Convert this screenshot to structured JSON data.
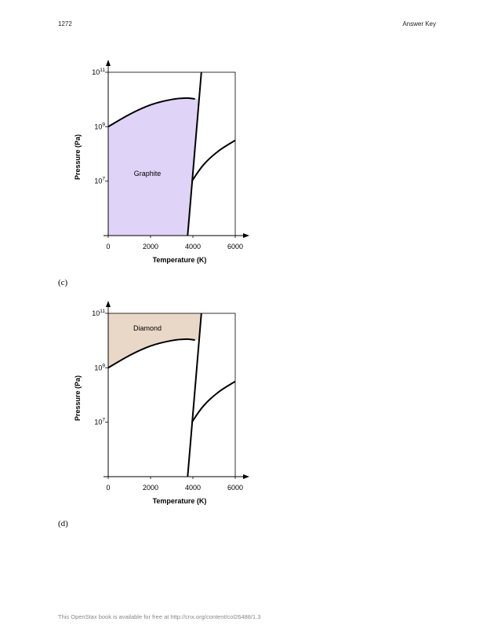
{
  "header": {
    "page_number": "1272",
    "section": "Answer Key"
  },
  "footer": {
    "text": "This OpenStax book is available for free at http://cnx.org/content/col26488/1.3"
  },
  "colors": {
    "graphite_fill": "#dfd3f7",
    "diamond_fill": "#e9d8c8",
    "line": "#000000"
  },
  "chart_data": [
    {
      "type": "area",
      "caption": "(c)",
      "region_label": "Graphite",
      "highlight": "graphite",
      "xlabel": "Temperature (K)",
      "ylabel": "Pressure (Pa)",
      "xlim": [
        0,
        6000
      ],
      "ylim_log10": [
        5,
        11
      ],
      "y_scale": "log",
      "x_ticks": [
        "0",
        "2000",
        "4000",
        "6000"
      ],
      "y_ticks": [
        {
          "base": "10",
          "exp": "11",
          "log": 11
        },
        {
          "base": "10",
          "exp": "9",
          "log": 9
        },
        {
          "base": "10",
          "exp": "7",
          "log": 7
        }
      ],
      "curves": {
        "graphite_diamond": [
          [
            0,
            9.0
          ],
          [
            1000,
            9.45
          ],
          [
            2000,
            9.8
          ],
          [
            3000,
            10.0
          ],
          [
            3700,
            10.05
          ],
          [
            4100,
            10.02
          ]
        ],
        "melting": [
          [
            3750,
            5.0
          ],
          [
            4400,
            11.0
          ]
        ],
        "vapor": [
          [
            3950,
            7.0
          ],
          [
            4500,
            7.6
          ],
          [
            5200,
            8.1
          ],
          [
            6000,
            8.5
          ]
        ]
      }
    },
    {
      "type": "area",
      "caption": "(d)",
      "region_label": "Diamond",
      "highlight": "diamond",
      "xlabel": "Temperature (K)",
      "ylabel": "Pressure (Pa)",
      "xlim": [
        0,
        6000
      ],
      "ylim_log10": [
        5,
        11
      ],
      "y_scale": "log",
      "x_ticks": [
        "0",
        "2000",
        "4000",
        "6000"
      ],
      "y_ticks": [
        {
          "base": "10",
          "exp": "11",
          "log": 11
        },
        {
          "base": "10",
          "exp": "9",
          "log": 9
        },
        {
          "base": "10",
          "exp": "7",
          "log": 7
        }
      ],
      "curves": {
        "graphite_diamond": [
          [
            0,
            9.0
          ],
          [
            1000,
            9.45
          ],
          [
            2000,
            9.8
          ],
          [
            3000,
            10.0
          ],
          [
            3700,
            10.05
          ],
          [
            4100,
            10.02
          ]
        ],
        "melting": [
          [
            3750,
            5.0
          ],
          [
            4400,
            11.0
          ]
        ],
        "vapor": [
          [
            3950,
            7.0
          ],
          [
            4500,
            7.6
          ],
          [
            5200,
            8.1
          ],
          [
            6000,
            8.5
          ]
        ]
      }
    }
  ]
}
